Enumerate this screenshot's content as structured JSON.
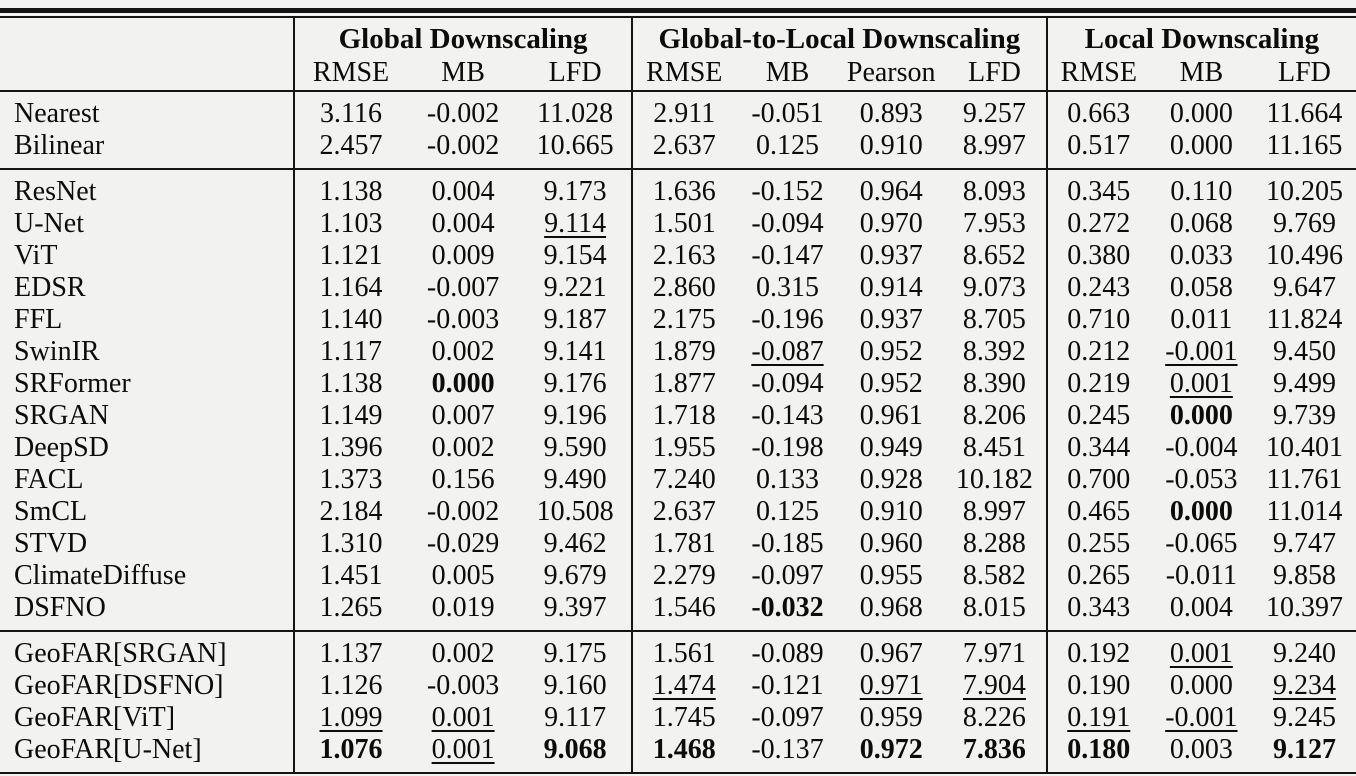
{
  "page": {
    "background": "#f2f2f0",
    "rule_color": "#141414",
    "text_color": "#0c0c0c"
  },
  "table": {
    "corner_label": "",
    "column_groups": [
      {
        "label": "Global Downscaling",
        "metrics": [
          "RMSE",
          "MB",
          "LFD"
        ]
      },
      {
        "label": "Global-to-Local Downscaling",
        "metrics": [
          "RMSE",
          "MB",
          "Pearson",
          "LFD"
        ]
      },
      {
        "label": "Local Downscaling",
        "metrics": [
          "RMSE",
          "MB",
          "LFD"
        ]
      }
    ],
    "formatting_legend": {
      "b": "bold (best)",
      "u": "underline (second best)"
    },
    "row_groups": [
      {
        "name": "interpolation-baselines",
        "rows": [
          {
            "method": "Nearest",
            "cells": [
              {
                "v": "3.116"
              },
              {
                "v": "-0.002"
              },
              {
                "v": "11.028"
              },
              {
                "v": "2.911"
              },
              {
                "v": "-0.051"
              },
              {
                "v": "0.893"
              },
              {
                "v": "9.257"
              },
              {
                "v": "0.663"
              },
              {
                "v": "0.000"
              },
              {
                "v": "11.664"
              }
            ]
          },
          {
            "method": "Bilinear",
            "cells": [
              {
                "v": "2.457"
              },
              {
                "v": "-0.002"
              },
              {
                "v": "10.665"
              },
              {
                "v": "2.637"
              },
              {
                "v": "0.125"
              },
              {
                "v": "0.910"
              },
              {
                "v": "8.997"
              },
              {
                "v": "0.517"
              },
              {
                "v": "0.000"
              },
              {
                "v": "11.165"
              }
            ]
          }
        ]
      },
      {
        "name": "learned-baselines",
        "rows": [
          {
            "method": "ResNet",
            "cells": [
              {
                "v": "1.138"
              },
              {
                "v": "0.004"
              },
              {
                "v": "9.173"
              },
              {
                "v": "1.636"
              },
              {
                "v": "-0.152"
              },
              {
                "v": "0.964"
              },
              {
                "v": "8.093"
              },
              {
                "v": "0.345"
              },
              {
                "v": "0.110"
              },
              {
                "v": "10.205"
              }
            ]
          },
          {
            "method": "U-Net",
            "cells": [
              {
                "v": "1.103"
              },
              {
                "v": "0.004"
              },
              {
                "v": "9.114",
                "f": "u"
              },
              {
                "v": "1.501"
              },
              {
                "v": "-0.094"
              },
              {
                "v": "0.970"
              },
              {
                "v": "7.953"
              },
              {
                "v": "0.272"
              },
              {
                "v": "0.068"
              },
              {
                "v": "9.769"
              }
            ]
          },
          {
            "method": "ViT",
            "cells": [
              {
                "v": "1.121"
              },
              {
                "v": "0.009"
              },
              {
                "v": "9.154"
              },
              {
                "v": "2.163"
              },
              {
                "v": "-0.147"
              },
              {
                "v": "0.937"
              },
              {
                "v": "8.652"
              },
              {
                "v": "0.380"
              },
              {
                "v": "0.033"
              },
              {
                "v": "10.496"
              }
            ]
          },
          {
            "method": "EDSR",
            "cells": [
              {
                "v": "1.164"
              },
              {
                "v": "-0.007"
              },
              {
                "v": "9.221"
              },
              {
                "v": "2.860"
              },
              {
                "v": "0.315"
              },
              {
                "v": "0.914"
              },
              {
                "v": "9.073"
              },
              {
                "v": "0.243"
              },
              {
                "v": "0.058"
              },
              {
                "v": "9.647"
              }
            ]
          },
          {
            "method": "FFL",
            "cells": [
              {
                "v": "1.140"
              },
              {
                "v": "-0.003"
              },
              {
                "v": "9.187"
              },
              {
                "v": "2.175"
              },
              {
                "v": "-0.196"
              },
              {
                "v": "0.937"
              },
              {
                "v": "8.705"
              },
              {
                "v": "0.710"
              },
              {
                "v": "0.011"
              },
              {
                "v": "11.824"
              }
            ]
          },
          {
            "method": "SwinIR",
            "cells": [
              {
                "v": "1.117"
              },
              {
                "v": "0.002"
              },
              {
                "v": "9.141"
              },
              {
                "v": "1.879"
              },
              {
                "v": "-0.087",
                "f": "u"
              },
              {
                "v": "0.952"
              },
              {
                "v": "8.392"
              },
              {
                "v": "0.212"
              },
              {
                "v": "-0.001",
                "f": "u"
              },
              {
                "v": "9.450"
              }
            ]
          },
          {
            "method": "SRFormer",
            "cells": [
              {
                "v": "1.138"
              },
              {
                "v": "0.000",
                "f": "b"
              },
              {
                "v": "9.176"
              },
              {
                "v": "1.877"
              },
              {
                "v": "-0.094"
              },
              {
                "v": "0.952"
              },
              {
                "v": "8.390"
              },
              {
                "v": "0.219"
              },
              {
                "v": "0.001",
                "f": "u"
              },
              {
                "v": "9.499"
              }
            ]
          },
          {
            "method": "SRGAN",
            "cells": [
              {
                "v": "1.149"
              },
              {
                "v": "0.007"
              },
              {
                "v": "9.196"
              },
              {
                "v": "1.718"
              },
              {
                "v": "-0.143"
              },
              {
                "v": "0.961"
              },
              {
                "v": "8.206"
              },
              {
                "v": "0.245"
              },
              {
                "v": "0.000",
                "f": "b"
              },
              {
                "v": "9.739"
              }
            ]
          },
          {
            "method": "DeepSD",
            "cells": [
              {
                "v": "1.396"
              },
              {
                "v": "0.002"
              },
              {
                "v": "9.590"
              },
              {
                "v": "1.955"
              },
              {
                "v": "-0.198"
              },
              {
                "v": "0.949"
              },
              {
                "v": "8.451"
              },
              {
                "v": "0.344"
              },
              {
                "v": "-0.004"
              },
              {
                "v": "10.401"
              }
            ]
          },
          {
            "method": "FACL",
            "cells": [
              {
                "v": "1.373"
              },
              {
                "v": "0.156"
              },
              {
                "v": "9.490"
              },
              {
                "v": "7.240"
              },
              {
                "v": "0.133"
              },
              {
                "v": "0.928"
              },
              {
                "v": "10.182"
              },
              {
                "v": "0.700"
              },
              {
                "v": "-0.053"
              },
              {
                "v": "11.761"
              }
            ]
          },
          {
            "method": "SmCL",
            "cells": [
              {
                "v": "2.184"
              },
              {
                "v": "-0.002"
              },
              {
                "v": "10.508"
              },
              {
                "v": "2.637"
              },
              {
                "v": "0.125"
              },
              {
                "v": "0.910"
              },
              {
                "v": "8.997"
              },
              {
                "v": "0.465"
              },
              {
                "v": "0.000",
                "f": "b"
              },
              {
                "v": "11.014"
              }
            ]
          },
          {
            "method": "STVD",
            "cells": [
              {
                "v": "1.310"
              },
              {
                "v": "-0.029"
              },
              {
                "v": "9.462"
              },
              {
                "v": "1.781"
              },
              {
                "v": "-0.185"
              },
              {
                "v": "0.960"
              },
              {
                "v": "8.288"
              },
              {
                "v": "0.255"
              },
              {
                "v": "-0.065"
              },
              {
                "v": "9.747"
              }
            ]
          },
          {
            "method": "ClimateDiffuse",
            "cells": [
              {
                "v": "1.451"
              },
              {
                "v": "0.005"
              },
              {
                "v": "9.679"
              },
              {
                "v": "2.279"
              },
              {
                "v": "-0.097"
              },
              {
                "v": "0.955"
              },
              {
                "v": "8.582"
              },
              {
                "v": "0.265"
              },
              {
                "v": "-0.011"
              },
              {
                "v": "9.858"
              }
            ]
          },
          {
            "method": "DSFNO",
            "cells": [
              {
                "v": "1.265"
              },
              {
                "v": "0.019"
              },
              {
                "v": "9.397"
              },
              {
                "v": "1.546"
              },
              {
                "v": "-0.032",
                "f": "b"
              },
              {
                "v": "0.968"
              },
              {
                "v": "8.015"
              },
              {
                "v": "0.343"
              },
              {
                "v": "0.004"
              },
              {
                "v": "10.397"
              }
            ]
          }
        ]
      },
      {
        "name": "geofar-variants",
        "rows": [
          {
            "method": "GeoFAR[SRGAN]",
            "cells": [
              {
                "v": "1.137"
              },
              {
                "v": "0.002"
              },
              {
                "v": "9.175"
              },
              {
                "v": "1.561"
              },
              {
                "v": "-0.089"
              },
              {
                "v": "0.967"
              },
              {
                "v": "7.971"
              },
              {
                "v": "0.192"
              },
              {
                "v": "0.001",
                "f": "u"
              },
              {
                "v": "9.240"
              }
            ]
          },
          {
            "method": "GeoFAR[DSFNO]",
            "cells": [
              {
                "v": "1.126"
              },
              {
                "v": "-0.003"
              },
              {
                "v": "9.160"
              },
              {
                "v": "1.474",
                "f": "u"
              },
              {
                "v": "-0.121"
              },
              {
                "v": "0.971",
                "f": "u"
              },
              {
                "v": "7.904",
                "f": "u"
              },
              {
                "v": "0.190"
              },
              {
                "v": "0.000"
              },
              {
                "v": "9.234",
                "f": "u"
              }
            ]
          },
          {
            "method": "GeoFAR[ViT]",
            "cells": [
              {
                "v": "1.099",
                "f": "u"
              },
              {
                "v": "0.001",
                "f": "u"
              },
              {
                "v": "9.117"
              },
              {
                "v": "1.745"
              },
              {
                "v": "-0.097"
              },
              {
                "v": "0.959"
              },
              {
                "v": "8.226"
              },
              {
                "v": "0.191",
                "f": "u"
              },
              {
                "v": "-0.001",
                "f": "u"
              },
              {
                "v": "9.245"
              }
            ]
          },
          {
            "method": "GeoFAR[U-Net]",
            "cells": [
              {
                "v": "1.076",
                "f": "b"
              },
              {
                "v": "0.001",
                "f": "u"
              },
              {
                "v": "9.068",
                "f": "b"
              },
              {
                "v": "1.468",
                "f": "b"
              },
              {
                "v": "-0.137"
              },
              {
                "v": "0.972",
                "f": "b"
              },
              {
                "v": "7.836",
                "f": "b"
              },
              {
                "v": "0.180",
                "f": "b"
              },
              {
                "v": "0.003"
              },
              {
                "v": "9.127",
                "f": "b"
              }
            ]
          }
        ]
      }
    ]
  }
}
